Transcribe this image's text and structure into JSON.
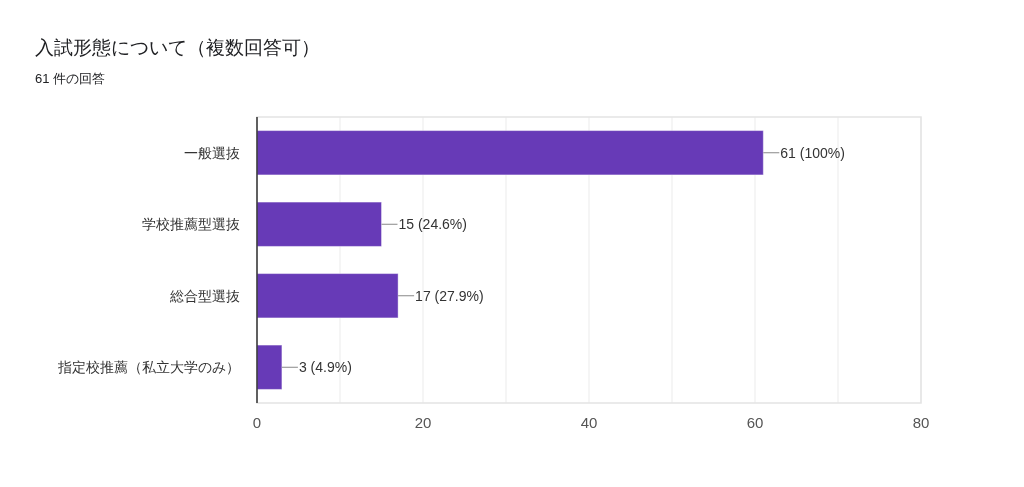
{
  "chart_data": {
    "type": "bar",
    "orientation": "horizontal",
    "title": "入試形態について（複数回答可）",
    "subtitle": "61 件の回答",
    "categories": [
      "一般選抜",
      "学校推薦型選抜",
      "総合型選抜",
      "指定校推薦（私立大学のみ）"
    ],
    "values": [
      61,
      15,
      17,
      3
    ],
    "color": "#673ab7",
    "value_labels": [
      "61 (100%)",
      "15 (24.6%)",
      "17 (27.9%)",
      "3 (4.9%)"
    ],
    "xlim": [
      0,
      80
    ],
    "xticks": [
      0,
      {
        "value": 10,
        "label": null
      },
      20,
      {
        "value": 30,
        "label": null
      },
      40,
      {
        "value": 50,
        "label": null
      },
      60,
      {
        "value": 70,
        "label": null
      },
      80
    ],
    "grid": "x"
  }
}
